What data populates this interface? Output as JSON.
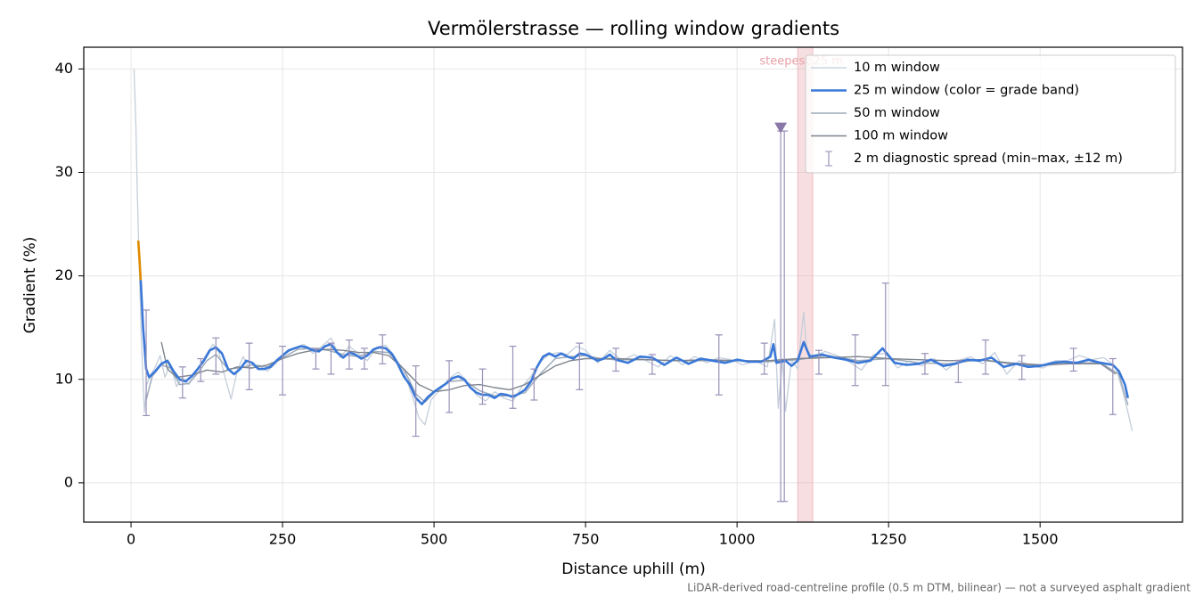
{
  "chart_data": {
    "type": "line",
    "title": "Vermölerstrasse — rolling window gradients",
    "x_label": "Distance uphill (m)",
    "y_label": "Gradient (%)",
    "footnote": "LiDAR-derived road-centreline profile (0.5 m DTM, bilinear) — not a surveyed asphalt gradient",
    "xlim": [
      -78,
      1735
    ],
    "ylim": [
      -3.8,
      42.1
    ],
    "xticks": [
      0,
      250,
      500,
      750,
      1000,
      1250,
      1500
    ],
    "yticks": [
      0,
      10,
      20,
      30,
      40
    ],
    "grid": true,
    "legend": "upper right",
    "series": [
      {
        "name": "10 m window",
        "color": "#c4ceda",
        "width": 1.3,
        "x": [
          5,
          8,
          10,
          13,
          17,
          22,
          26,
          32,
          40,
          48,
          56,
          65,
          75,
          85,
          95,
          105,
          115,
          125,
          135,
          145,
          155,
          165,
          175,
          185,
          195,
          210,
          225,
          240,
          255,
          270,
          285,
          300,
          315,
          330,
          345,
          360,
          375,
          390,
          405,
          420,
          435,
          450,
          465,
          475,
          485,
          495,
          510,
          525,
          540,
          555,
          570,
          585,
          600,
          615,
          630,
          645,
          660,
          675,
          690,
          705,
          720,
          735,
          750,
          770,
          790,
          810,
          830,
          850,
          870,
          890,
          910,
          930,
          950,
          970,
          990,
          1010,
          1030,
          1050,
          1062,
          1068,
          1075,
          1080,
          1090,
          1100,
          1110,
          1115,
          1125,
          1145,
          1165,
          1185,
          1205,
          1225,
          1245,
          1265,
          1285,
          1305,
          1325,
          1345,
          1365,
          1385,
          1405,
          1425,
          1445,
          1465,
          1485,
          1505,
          1525,
          1545,
          1565,
          1585,
          1605,
          1625,
          1638,
          1645,
          1652
        ],
        "values": [
          40,
          34.5,
          29,
          22,
          14,
          6.8,
          9.5,
          10.4,
          11.2,
          12.3,
          10.2,
          11.5,
          9.3,
          10.2,
          9.5,
          10.4,
          11.5,
          12.5,
          13.4,
          12.6,
          10.2,
          8.1,
          10.8,
          12.2,
          11,
          11.4,
          10.8,
          11.6,
          12.5,
          13,
          13.4,
          12.5,
          13.2,
          14,
          12.1,
          13.2,
          12.5,
          11.8,
          13.1,
          13.3,
          12.2,
          10.8,
          8.2,
          6.3,
          5.6,
          8,
          9,
          10.1,
          10.7,
          9.7,
          8.5,
          7.9,
          8.8,
          8.2,
          7.9,
          9.3,
          10.3,
          11.7,
          12.4,
          12.6,
          12.4,
          13.2,
          12.8,
          11.6,
          12.8,
          11.8,
          12.4,
          11.8,
          11.2,
          12.3,
          11.4,
          12.2,
          11.6,
          12.1,
          11.9,
          11.4,
          11.8,
          11.2,
          15.8,
          7.2,
          12,
          6.9,
          11.9,
          11,
          16.5,
          12.8,
          12.1,
          12.7,
          12.3,
          11.7,
          10.9,
          12.4,
          12.5,
          11.1,
          11.8,
          11.3,
          12,
          10.9,
          11.8,
          12.2,
          11.5,
          12.6,
          10.5,
          11.8,
          11.3,
          11.1,
          11.8,
          11.8,
          12.3,
          11.9,
          12.1,
          11.2,
          8.5,
          6.8,
          5
        ]
      },
      {
        "name": "25 m window (color = grade band)",
        "color": "#3a78d8",
        "width": 2.6,
        "x": [
          16,
          20,
          25,
          30,
          40,
          50,
          60,
          70,
          80,
          90,
          100,
          110,
          120,
          130,
          140,
          150,
          160,
          170,
          180,
          190,
          200,
          210,
          220,
          230,
          240,
          250,
          260,
          270,
          280,
          290,
          300,
          310,
          320,
          330,
          340,
          350,
          360,
          370,
          380,
          390,
          400,
          410,
          420,
          430,
          440,
          450,
          460,
          470,
          480,
          490,
          500,
          510,
          520,
          530,
          540,
          550,
          560,
          570,
          580,
          590,
          600,
          610,
          620,
          630,
          640,
          650,
          660,
          670,
          680,
          690,
          700,
          710,
          720,
          730,
          740,
          750,
          760,
          770,
          780,
          790,
          800,
          820,
          840,
          860,
          880,
          900,
          920,
          940,
          960,
          980,
          1000,
          1020,
          1040,
          1055,
          1060,
          1065,
          1080,
          1090,
          1100,
          1110,
          1120,
          1140,
          1160,
          1180,
          1200,
          1220,
          1240,
          1260,
          1280,
          1300,
          1320,
          1340,
          1360,
          1380,
          1400,
          1420,
          1440,
          1460,
          1480,
          1500,
          1520,
          1540,
          1560,
          1580,
          1600,
          1620,
          1630,
          1640,
          1645
        ],
        "values": [
          19.6,
          15,
          11,
          10.2,
          10.8,
          11.5,
          11.8,
          10.8,
          10,
          9.8,
          10.3,
          11,
          11.8,
          12.8,
          13.1,
          12.5,
          11,
          10.5,
          11,
          11.8,
          11.6,
          11,
          11,
          11.2,
          11.8,
          12.3,
          12.8,
          13,
          13.2,
          13.1,
          12.8,
          12.7,
          13.2,
          13.4,
          12.6,
          12.1,
          12.6,
          12.4,
          12,
          12.3,
          12.9,
          13.1,
          13,
          12.5,
          11.5,
          10.3,
          9.5,
          8.2,
          7.6,
          8.3,
          8.8,
          9.2,
          9.6,
          10.1,
          10.3,
          10,
          9.2,
          8.7,
          8.5,
          8.5,
          8.2,
          8.6,
          8.5,
          8.3,
          8.6,
          9,
          9.8,
          11.2,
          12.2,
          12.5,
          12.2,
          12.5,
          12.2,
          12,
          12.5,
          12.4,
          12.1,
          11.8,
          12,
          12.4,
          11.9,
          11.6,
          12.2,
          12.1,
          11.4,
          12.1,
          11.5,
          12,
          11.8,
          11.6,
          11.9,
          11.7,
          11.7,
          12.2,
          13.4,
          11.6,
          11.8,
          11.3,
          11.8,
          13.6,
          12.2,
          12.4,
          12.1,
          11.9,
          11.6,
          11.8,
          13,
          11.6,
          11.4,
          11.5,
          11.9,
          11.3,
          11.5,
          11.9,
          11.8,
          12.1,
          11.2,
          11.5,
          11.2,
          11.3,
          11.6,
          11.7,
          11.6,
          11.9,
          11.6,
          11.4,
          10.8,
          9.5,
          8.2
        ],
        "bands": [
          {
            "color": "#e08a00",
            "x": [
              12,
              14,
              16
            ],
            "values": [
              23.4,
              21.5,
              19.6
            ]
          }
        ]
      },
      {
        "name": "50 m window",
        "color": "#9eabba",
        "width": 1.5,
        "x": [
          25,
          35,
          50,
          65,
          80,
          95,
          110,
          125,
          140,
          160,
          180,
          200,
          225,
          250,
          275,
          300,
          325,
          350,
          375,
          400,
          425,
          450,
          470,
          485,
          500,
          525,
          550,
          575,
          600,
          625,
          650,
          675,
          700,
          725,
          750,
          775,
          800,
          850,
          900,
          950,
          1000,
          1050,
          1100,
          1150,
          1200,
          1250,
          1300,
          1350,
          1400,
          1450,
          1500,
          1550,
          1600,
          1630,
          1645
        ],
        "values": [
          8,
          10.3,
          11.4,
          11.1,
          9.5,
          9.6,
          10.6,
          11.8,
          12.4,
          11,
          11.1,
          11.4,
          11.2,
          12.1,
          12.9,
          13,
          12.8,
          12.4,
          12.2,
          12.7,
          12.6,
          11,
          8.6,
          7.8,
          8.7,
          9.8,
          9.9,
          8.9,
          8.4,
          8.4,
          8.7,
          10.5,
          12,
          12.2,
          12.3,
          12,
          11.9,
          11.9,
          11.8,
          11.8,
          11.8,
          11.7,
          11.9,
          12.3,
          11.8,
          12,
          11.6,
          11.5,
          11.9,
          11.5,
          11.3,
          11.6,
          11.6,
          10.5,
          7.5
        ]
      },
      {
        "name": "100 m window",
        "color": "#7d848d",
        "width": 1.4,
        "x": [
          50,
          60,
          75,
          100,
          125,
          150,
          175,
          200,
          225,
          250,
          275,
          300,
          325,
          350,
          375,
          400,
          425,
          450,
          475,
          500,
          525,
          550,
          575,
          600,
          625,
          650,
          675,
          700,
          725,
          750,
          800,
          850,
          900,
          950,
          1000,
          1050,
          1100,
          1150,
          1200,
          1250,
          1300,
          1350,
          1400,
          1450,
          1500,
          1550,
          1600,
          1625
        ],
        "values": [
          13.6,
          11,
          10.2,
          10.4,
          10.9,
          10.7,
          11.2,
          11.1,
          11.4,
          12,
          12.5,
          12.8,
          12.9,
          12.8,
          12.6,
          12.6,
          12.3,
          11,
          9.5,
          8.8,
          9,
          9.4,
          9.5,
          9.2,
          9,
          9.5,
          10.4,
          11.3,
          11.8,
          12,
          12,
          11.9,
          11.8,
          11.9,
          11.8,
          11.8,
          12,
          12.1,
          12.2,
          12,
          11.9,
          11.8,
          11.9,
          11.6,
          11.4,
          11.5,
          11.5,
          10.5
        ]
      }
    ],
    "errorbars": {
      "name": "2 m diagnostic spread (min–max, ±12 m)",
      "color": "#9890b8",
      "x": [
        25,
        85,
        115,
        140,
        195,
        250,
        305,
        330,
        360,
        385,
        415,
        470,
        525,
        580,
        630,
        665,
        740,
        800,
        860,
        970,
        1045,
        1072,
        1078,
        1135,
        1195,
        1245,
        1310,
        1365,
        1410,
        1470,
        1555,
        1620
      ],
      "low": [
        6.5,
        8.2,
        9.8,
        10.5,
        9,
        8.5,
        11,
        10.5,
        11,
        11,
        11.5,
        4.5,
        6.8,
        7.6,
        7.2,
        8,
        9,
        10.8,
        10.5,
        8.5,
        10.5,
        -1.8,
        -1.8,
        10.5,
        9.4,
        9.4,
        10.5,
        9.7,
        10.5,
        10,
        10.8,
        6.6
      ],
      "high": [
        16.7,
        11.2,
        12,
        14,
        13.5,
        13.2,
        13,
        13.5,
        13.8,
        13,
        14.3,
        11.3,
        11.8,
        11,
        13.2,
        11,
        13.5,
        13,
        12.4,
        14.3,
        13.5,
        34,
        34,
        12.8,
        14.3,
        19.3,
        12.5,
        11.8,
        13.8,
        12.3,
        13,
        12
      ]
    },
    "span": {
      "x": [
        1100,
        1125
      ],
      "label": "steepest 25 m",
      "color": "#e8a0a8"
    },
    "marker": {
      "x": 1072,
      "y": 34.3,
      "color": "#8a78a8"
    }
  }
}
